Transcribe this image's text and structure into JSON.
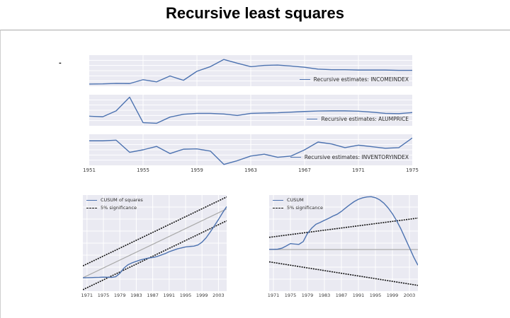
{
  "title": "Recursive least squares",
  "stray_mark": "-",
  "palette": {
    "series_blue": "#4C72B0",
    "significance_black": "#111111",
    "reference_gray": "#aaaaaa",
    "panel_background": "#eaeaf2",
    "gridline_white": "#ffffff"
  },
  "chart_data": [
    {
      "id": "recursive-estimates",
      "type": "line",
      "y_axis": "unlabeled (no y tick labels shown; y values normalized 0-1 of panel height, estimated from pixels)",
      "xlim": [
        1951,
        1975
      ],
      "xticks": [
        1951,
        1955,
        1959,
        1963,
        1967,
        1971,
        1975
      ],
      "x_years": [
        1951,
        1952,
        1953,
        1954,
        1955,
        1956,
        1957,
        1958,
        1959,
        1960,
        1961,
        1962,
        1963,
        1964,
        1965,
        1966,
        1967,
        1968,
        1969,
        1970,
        1971,
        1972,
        1973,
        1974,
        1975
      ],
      "panels": [
        {
          "legend": "Recursive estimates: INCOMEINDEX",
          "lines": [
            {
              "name": "incomeindex-line",
              "stroke": "#4C72B0",
              "w": 1.4,
              "y": [
                0.07,
                0.075,
                0.09,
                0.085,
                0.21,
                0.14,
                0.33,
                0.19,
                0.48,
                0.63,
                0.86,
                0.74,
                0.63,
                0.67,
                0.68,
                0.65,
                0.61,
                0.55,
                0.53,
                0.53,
                0.52,
                0.52,
                0.52,
                0.51,
                0.51
              ]
            }
          ]
        },
        {
          "legend": "Recursive estimates: ALUMPRICE",
          "lines": [
            {
              "name": "alumprice-line",
              "stroke": "#4C72B0",
              "w": 1.4,
              "y": [
                0.31,
                0.29,
                0.48,
                0.92,
                0.1,
                0.08,
                0.28,
                0.37,
                0.4,
                0.4,
                0.38,
                0.33,
                0.4,
                0.41,
                0.42,
                0.44,
                0.46,
                0.475,
                0.48,
                0.48,
                0.47,
                0.44,
                0.4,
                0.39,
                0.425
              ]
            }
          ]
        },
        {
          "legend": "Recursive estimates: INVENTORYINDEX",
          "lines": [
            {
              "name": "inventoryindex-line",
              "stroke": "#4C72B0",
              "w": 1.4,
              "y": [
                0.79,
                0.79,
                0.81,
                0.42,
                0.5,
                0.61,
                0.38,
                0.52,
                0.53,
                0.46,
                0.03,
                0.15,
                0.3,
                0.36,
                0.26,
                0.3,
                0.5,
                0.75,
                0.69,
                0.57,
                0.65,
                0.6,
                0.55,
                0.57,
                0.88
              ]
            }
          ]
        }
      ]
    },
    {
      "id": "cusum-of-squares",
      "type": "line",
      "y_axis": "unlabeled (values normalized 0-1 of panel height, estimated from pixels)",
      "xlim": [
        1970,
        2005
      ],
      "xticks": [
        1971,
        1975,
        1979,
        1983,
        1987,
        1991,
        1995,
        1999,
        2003
      ],
      "x_years": [
        1970,
        1971,
        1972,
        1973,
        1974,
        1975,
        1976,
        1977,
        1978,
        1979,
        1980,
        1981,
        1982,
        1983,
        1984,
        1985,
        1986,
        1987,
        1988,
        1989,
        1990,
        1991,
        1992,
        1993,
        1994,
        1995,
        1996,
        1997,
        1998,
        1999,
        2000,
        2001,
        2002,
        2003,
        2004,
        2005
      ],
      "legend": [
        "CUSUM of squares",
        "5% significance"
      ],
      "lines": [
        {
          "name": "reference-line",
          "stroke": "#aaaaaa",
          "w": 1.2,
          "y": [
            0.139,
            0.856
          ]
        },
        {
          "name": "significance-upper-line",
          "stroke": "#111111",
          "w": 1.6,
          "dash": "2 1.3",
          "y": [
            0.263,
            0.98
          ]
        },
        {
          "name": "significance-lower-line",
          "stroke": "#111111",
          "w": 1.6,
          "dash": "2 1.3",
          "y": [
            0.015,
            0.732
          ]
        },
        {
          "name": "cusum-squares-line",
          "stroke": "#4C72B0",
          "w": 1.4,
          "y": [
            0.139,
            0.14,
            0.141,
            0.143,
            0.144,
            0.146,
            0.145,
            0.143,
            0.15,
            0.185,
            0.24,
            0.275,
            0.295,
            0.31,
            0.325,
            0.335,
            0.345,
            0.35,
            0.36,
            0.375,
            0.39,
            0.41,
            0.425,
            0.44,
            0.45,
            0.46,
            0.465,
            0.468,
            0.48,
            0.51,
            0.555,
            0.615,
            0.68,
            0.745,
            0.815,
            0.88
          ]
        }
      ]
    },
    {
      "id": "cusum",
      "type": "line",
      "y_axis": "unlabeled (values normalized 0-1 of panel height, estimated from pixels; gray line is zero)",
      "xlim": [
        1970,
        2005
      ],
      "xticks": [
        1971,
        1975,
        1979,
        1983,
        1987,
        1991,
        1995,
        1999,
        2003
      ],
      "x_years": [
        1970,
        1971,
        1972,
        1973,
        1974,
        1975,
        1976,
        1977,
        1978,
        1979,
        1980,
        1981,
        1982,
        1983,
        1984,
        1985,
        1986,
        1987,
        1988,
        1989,
        1990,
        1991,
        1992,
        1993,
        1994,
        1995,
        1996,
        1997,
        1998,
        1999,
        2000,
        2001,
        2002,
        2003,
        2004,
        2005
      ],
      "legend": [
        "CUSUM",
        "5% significance"
      ],
      "lines": [
        {
          "name": "zero-line",
          "stroke": "#aaaaaa",
          "w": 1.2,
          "y": [
            0.433,
            0.433
          ]
        },
        {
          "name": "significance-upper-line",
          "stroke": "#111111",
          "w": 1.6,
          "dash": "2 1.3",
          "y": [
            0.56,
            0.76
          ]
        },
        {
          "name": "significance-lower-line",
          "stroke": "#111111",
          "w": 1.6,
          "dash": "2 1.3",
          "y": [
            0.305,
            0.06
          ]
        },
        {
          "name": "cusum-line",
          "stroke": "#4C72B0",
          "w": 1.4,
          "y": [
            0.435,
            0.435,
            0.437,
            0.447,
            0.47,
            0.495,
            0.49,
            0.487,
            0.515,
            0.6,
            0.655,
            0.696,
            0.715,
            0.737,
            0.757,
            0.781,
            0.8,
            0.83,
            0.866,
            0.9,
            0.932,
            0.956,
            0.971,
            0.98,
            0.983,
            0.972,
            0.95,
            0.915,
            0.866,
            0.805,
            0.732,
            0.647,
            0.55,
            0.453,
            0.355,
            0.27
          ]
        }
      ]
    }
  ]
}
